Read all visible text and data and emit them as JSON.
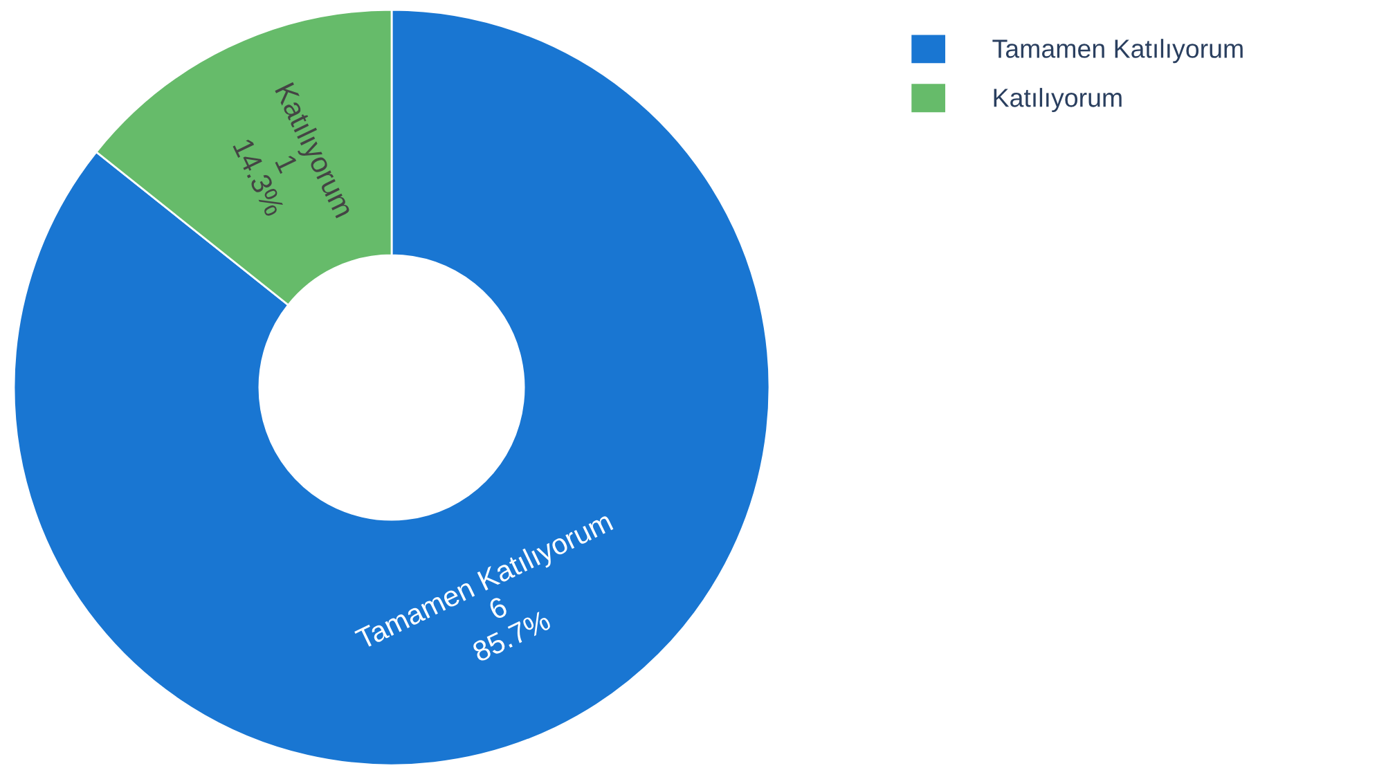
{
  "chart_data": {
    "type": "donut",
    "categories": [
      "Tamamen Katılıyorum",
      "Katılıyorum"
    ],
    "values": [
      6,
      1
    ],
    "colors": [
      "#1976d2",
      "#66bb6a"
    ],
    "value_labels": [
      "6\n85.7%",
      "1\n14.3%"
    ],
    "legend": "top right"
  }
}
